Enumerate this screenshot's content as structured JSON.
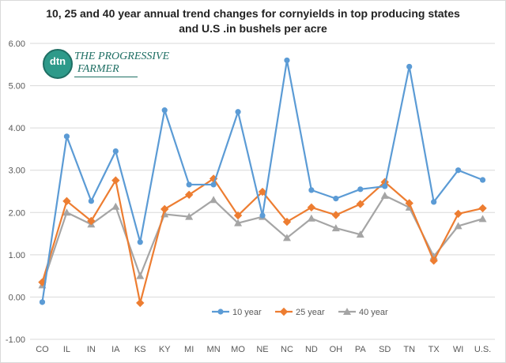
{
  "title_line1": "10, 25 and 40 year annual trend changes for cornyields in top producing states",
  "title_line2": "and U.S .in bushels per acre",
  "logo": {
    "mark": "dtn",
    "line1": "THE PROGRESSIVE",
    "line2": "FARMER"
  },
  "chart_data": {
    "type": "line",
    "title": "10, 25 and 40 year annual trend changes for cornyields in top producing states and U.S .in bushels per acre",
    "xlabel": "",
    "ylabel": "",
    "categories": [
      "CO",
      "IL",
      "IN",
      "IA",
      "KS",
      "KY",
      "MI",
      "MN",
      "MO",
      "NE",
      "NC",
      "ND",
      "OH",
      "PA",
      "SD",
      "TN",
      "TX",
      "WI",
      "U.S."
    ],
    "ylim": [
      -1.0,
      6.0
    ],
    "yticks": [
      "-1.00",
      "0.00",
      "1.00",
      "2.00",
      "3.00",
      "4.00",
      "5.00",
      "6.00"
    ],
    "grid": true,
    "legend_position": "bottom-center",
    "series": [
      {
        "name": "10 year",
        "color": "#5b9bd5",
        "marker": "circle",
        "values": [
          -0.12,
          3.8,
          2.27,
          3.45,
          1.3,
          4.42,
          2.66,
          2.66,
          4.38,
          1.93,
          5.6,
          2.53,
          2.33,
          2.55,
          2.62,
          5.45,
          2.25,
          3.0,
          2.77
        ]
      },
      {
        "name": "25 year",
        "color": "#ed7d31",
        "marker": "diamond",
        "values": [
          0.35,
          2.27,
          1.8,
          2.76,
          -0.14,
          2.08,
          2.42,
          2.8,
          1.93,
          2.49,
          1.78,
          2.12,
          1.94,
          2.2,
          2.72,
          2.22,
          0.86,
          1.97,
          2.1
        ]
      },
      {
        "name": "40 year",
        "color": "#a5a5a5",
        "marker": "triangle",
        "values": [
          0.28,
          2.0,
          1.72,
          2.14,
          0.5,
          1.96,
          1.9,
          2.3,
          1.75,
          1.9,
          1.4,
          1.86,
          1.63,
          1.48,
          2.4,
          2.12,
          0.96,
          1.68,
          1.85
        ]
      }
    ]
  }
}
